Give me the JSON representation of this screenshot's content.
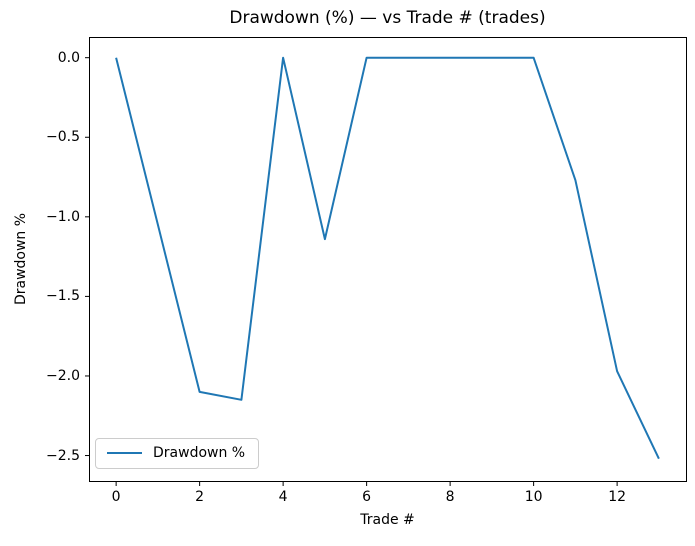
{
  "chart_data": {
    "type": "line",
    "title": "Drawdown (%) — vs Trade # (trades)",
    "xlabel": "Trade #",
    "ylabel": "Drawdown %",
    "x": [
      0,
      1,
      2,
      3,
      4,
      5,
      6,
      7,
      8,
      9,
      10,
      11,
      12,
      13
    ],
    "series": [
      {
        "name": "Drawdown %",
        "color": "#1f77b4",
        "values": [
          0.0,
          -1.05,
          -2.1,
          -2.15,
          0.0,
          -1.14,
          0.0,
          0.0,
          0.0,
          0.0,
          0.0,
          -0.77,
          -1.97,
          -2.52
        ]
      }
    ],
    "xticks": [
      0,
      2,
      4,
      6,
      8,
      10,
      12
    ],
    "xtick_labels": [
      "0",
      "2",
      "4",
      "6",
      "8",
      "10",
      "12"
    ],
    "yticks": [
      0.0,
      -0.5,
      -1.0,
      -1.5,
      -2.0,
      -2.5
    ],
    "ytick_labels": [
      "0.0",
      "−0.5",
      "−1.0",
      "−1.5",
      "−2.0",
      "−2.5"
    ],
    "xlim": [
      -0.65,
      13.65
    ],
    "ylim": [
      -2.66,
      0.13
    ],
    "grid": false,
    "axes_color": "#000000",
    "legend": {
      "position": "lower left",
      "entries": [
        {
          "label": "Drawdown %",
          "color": "#1f77b4"
        }
      ]
    }
  }
}
